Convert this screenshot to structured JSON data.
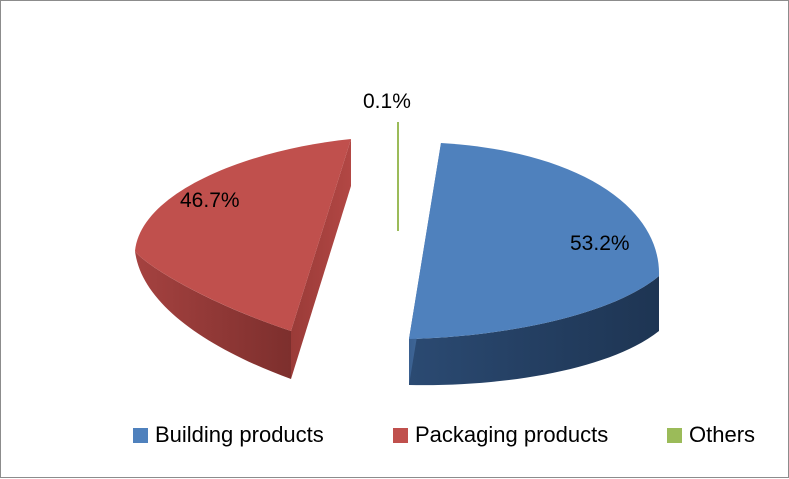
{
  "chart_data": {
    "type": "pie",
    "title": "",
    "exploded": true,
    "three_d": true,
    "series": [
      {
        "name": "Building products",
        "value": 53.2,
        "label": "53.2%",
        "color": "#4F81BD"
      },
      {
        "name": "Packaging products",
        "value": 46.7,
        "label": "46.7%",
        "color": "#C0504D"
      },
      {
        "name": "Others",
        "value": 0.1,
        "label": "0.1%",
        "color": "#9BBB59"
      }
    ],
    "legend_position": "bottom"
  }
}
